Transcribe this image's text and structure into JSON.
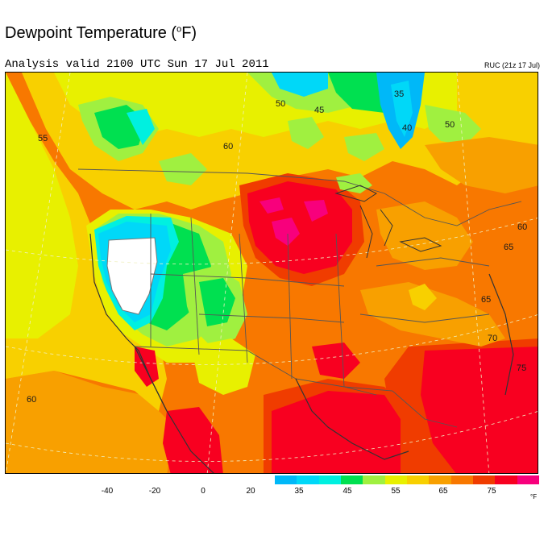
{
  "title": {
    "text": "Dewpoint Temperature (",
    "deg": "o",
    "unit": "F)"
  },
  "subtitle": "Analysis valid 2100 UTC Sun 17 Jul 2011",
  "model_tag": "RUC (21z 17 Jul)",
  "legend": {
    "tick_labels": [
      "-40",
      "-20",
      "0",
      "20",
      "35",
      "45",
      "55",
      "65",
      "75"
    ],
    "unit_label": "°F",
    "swatch_colors": [
      "#00b8f8",
      "#00d8f8",
      "#00f0e0",
      "#00e050",
      "#a0f040",
      "#e8f000",
      "#f8d000",
      "#f8a000",
      "#f87800",
      "#f03c00",
      "#f80020",
      "#f8007c"
    ]
  },
  "map": {
    "contour_labels": [
      "55",
      "60",
      "50",
      "45",
      "35",
      "40",
      "50",
      "65",
      "60",
      "65",
      "70",
      "75",
      "60"
    ],
    "colors": {
      "red": "#f80020",
      "magenta": "#f8007c",
      "orange_red": "#f03c00",
      "orange": "#f87800",
      "dark_yellow_orange": "#f8a000",
      "yellow_orange": "#f8d000",
      "yellow": "#e8f000",
      "yellow_green": "#a0f040",
      "green": "#00e050",
      "cyan": "#00f0e0",
      "light_blue": "#00d8f8",
      "blue": "#00b8f8",
      "white": "#ffffff",
      "border": "#555555",
      "lat_lon": "#f0f0c0"
    }
  }
}
